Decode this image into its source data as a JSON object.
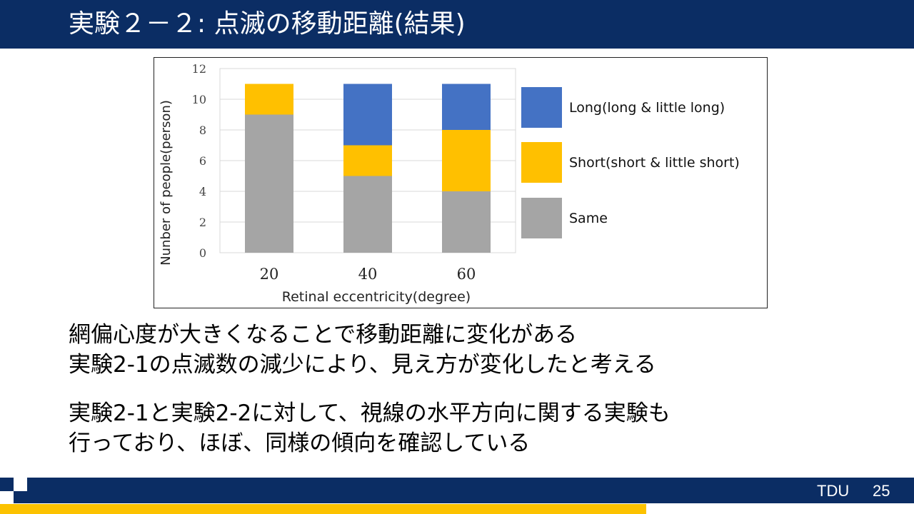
{
  "slide": {
    "title": "実験２－２: 点滅の移動距離(結果)",
    "body_lines": [
      "網偏心度が大きくなることで移動距離に変化がある",
      "実験2-1の点滅数の減少により、見え方が変化したと考える",
      "実験2-1と実験2-2に対して、視線の水平方向に関する実験も",
      "行っており、ほぼ、同様の傾向を確認している"
    ],
    "footer_label": "TDU",
    "page_number": "25"
  },
  "colors": {
    "header_bg": "#0b2d64",
    "accent_yellow": "#fcc200",
    "long": "#4472c4",
    "short": "#ffc000",
    "same": "#a5a5a5"
  },
  "chart_data": {
    "type": "bar",
    "stacked": true,
    "categories": [
      "20",
      "40",
      "60"
    ],
    "series": [
      {
        "name": "Same",
        "values": [
          9,
          5,
          4
        ],
        "color": "#a5a5a5"
      },
      {
        "name": "Short(short & little short)",
        "values": [
          2,
          2,
          4
        ],
        "color": "#ffc000"
      },
      {
        "name": "Long(long & little long)",
        "values": [
          0,
          4,
          3
        ],
        "color": "#4472c4"
      }
    ],
    "legend_order": [
      "Long(long & little long)",
      "Short(short & little short)",
      "Same"
    ],
    "title": "",
    "xlabel": "Retinal eccentricity(degree)",
    "ylabel": "Nunber of people(person)",
    "ylim": [
      0,
      12
    ],
    "yticks": [
      "0",
      "2",
      "4",
      "6",
      "8",
      "10",
      "12"
    ],
    "grid": true,
    "legend_position": "right"
  }
}
